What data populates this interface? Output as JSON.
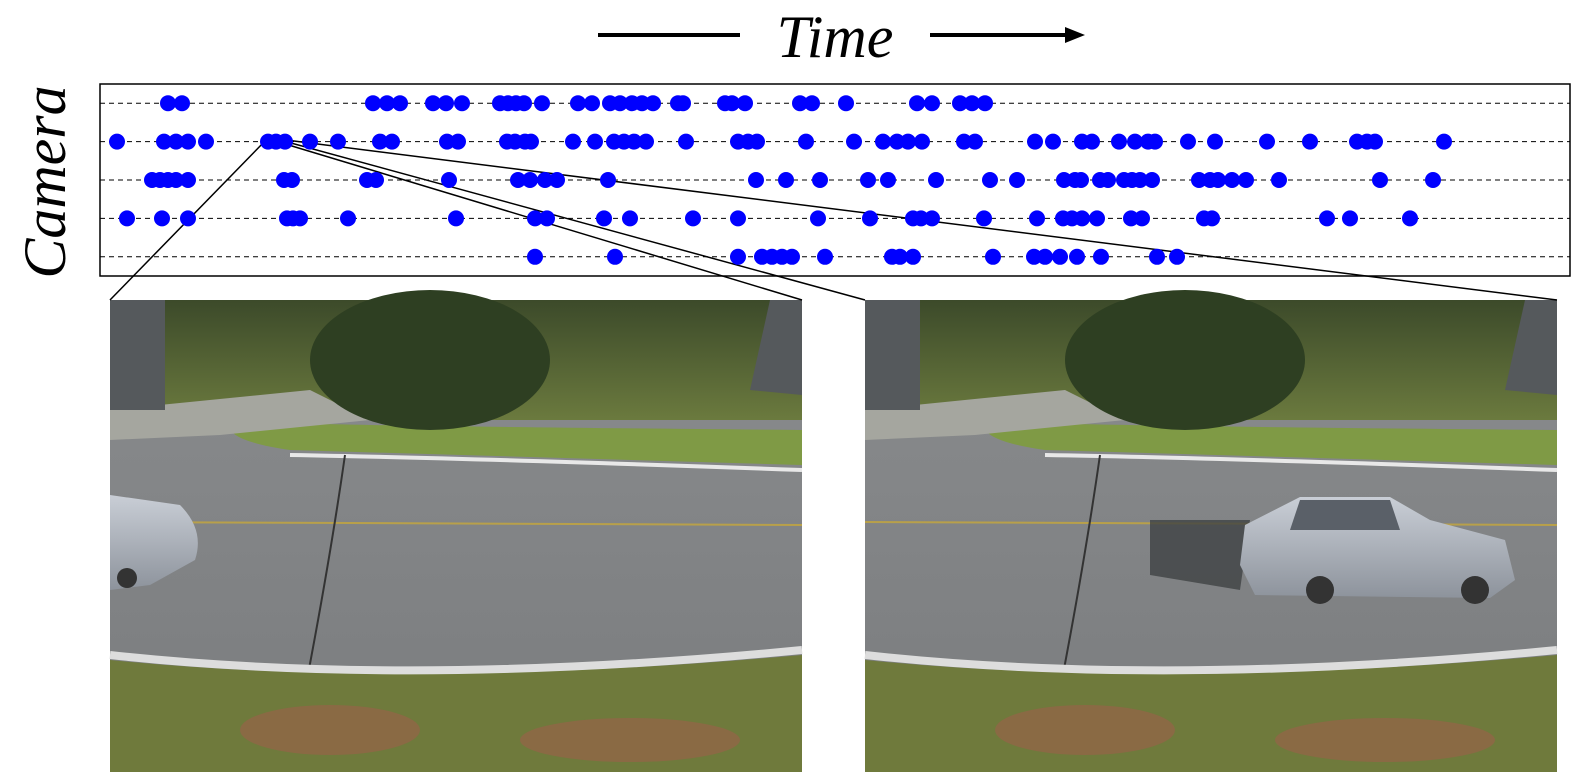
{
  "chart_data": {
    "type": "scatter",
    "xlabel": "Time",
    "ylabel": "Camera",
    "color": "#0000ff",
    "xlim": [
      0,
      1470
    ],
    "ylim": [
      0.5,
      5.5
    ],
    "grid": true,
    "series": [
      {
        "y": 1,
        "x": [
          68,
          82,
          273,
          287,
          300,
          333,
          346,
          362,
          400,
          408,
          416,
          424,
          442,
          478,
          492,
          510,
          520,
          532,
          542,
          553,
          578,
          583,
          625,
          632,
          645,
          700,
          712,
          746,
          817,
          832,
          860,
          872,
          885
        ]
      },
      {
        "y": 2,
        "x": [
          17,
          64,
          76,
          88,
          106,
          168,
          176,
          185,
          210,
          238,
          280,
          292,
          347,
          358,
          407,
          415,
          425,
          431,
          473,
          495,
          514,
          524,
          534,
          546,
          586,
          638,
          648,
          657,
          706,
          754,
          783,
          797,
          808,
          822,
          864,
          875,
          935,
          953,
          982,
          992,
          1019,
          1035,
          1048,
          1055,
          1088,
          1115,
          1167,
          1210,
          1257,
          1267,
          1275,
          1344
        ]
      },
      {
        "y": 3,
        "x": [
          52,
          60,
          68,
          76,
          88,
          184,
          192,
          267,
          276,
          349,
          418,
          430,
          445,
          457,
          508,
          656,
          686,
          720,
          768,
          788,
          836,
          890,
          917,
          964,
          975,
          981,
          1000,
          1008,
          1024,
          1032,
          1040,
          1052,
          1099,
          1110,
          1118,
          1132,
          1146,
          1179,
          1280,
          1333
        ]
      },
      {
        "y": 4,
        "x": [
          27,
          62,
          88,
          187,
          193,
          200,
          248,
          356,
          435,
          447,
          504,
          530,
          593,
          638,
          718,
          770,
          813,
          821,
          832,
          884,
          937,
          963,
          972,
          982,
          997,
          1031,
          1042,
          1104,
          1112,
          1227,
          1250,
          1310
        ]
      },
      {
        "y": 5,
        "x": [
          435,
          515,
          638,
          662,
          672,
          682,
          692,
          725,
          792,
          800,
          813,
          893,
          934,
          945,
          960,
          977,
          1001,
          1057,
          1077
        ]
      }
    ]
  }
}
